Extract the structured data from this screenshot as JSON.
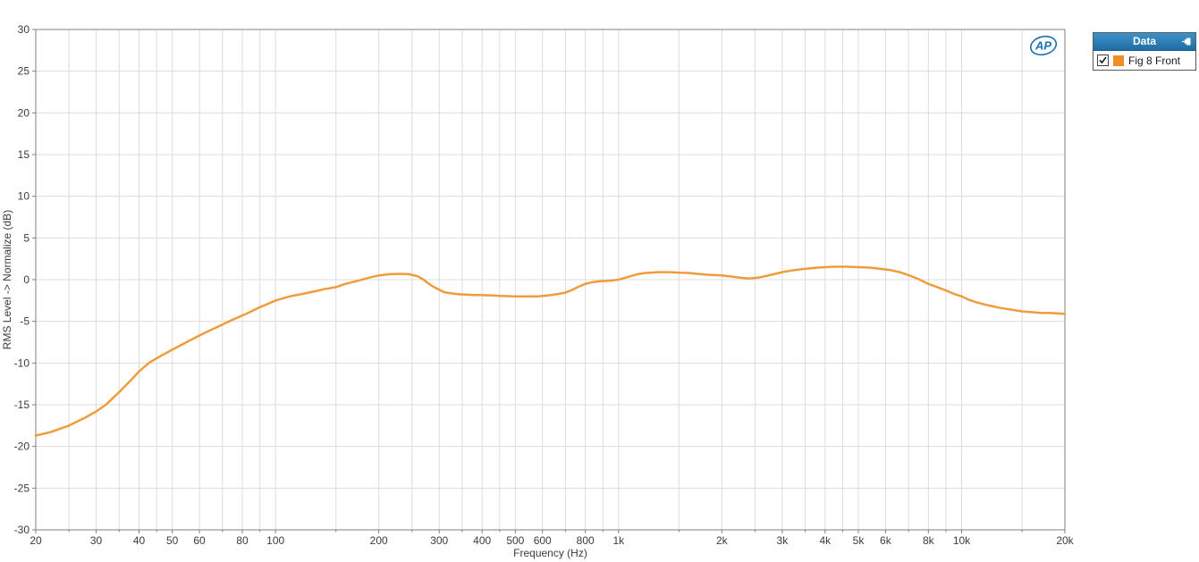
{
  "chart_data": {
    "type": "line",
    "title": "",
    "xlabel": "Frequency (Hz)",
    "ylabel": "RMS Level -> Normalize (dB)",
    "x_scale": "log",
    "xlim": [
      20,
      20000
    ],
    "ylim": [
      -30,
      30
    ],
    "y_tick_step": 5,
    "grid": true,
    "legend_position": "external-right",
    "x_major_ticks": [
      20,
      30,
      40,
      50,
      60,
      80,
      100,
      200,
      300,
      400,
      500,
      600,
      800,
      1000,
      2000,
      3000,
      4000,
      5000,
      6000,
      8000,
      10000,
      20000
    ],
    "x_major_labels": [
      "20",
      "30",
      "40",
      "50",
      "60",
      "80",
      "100",
      "200",
      "300",
      "400",
      "500",
      "600",
      "800",
      "1k",
      "2k",
      "3k",
      "4k",
      "5k",
      "6k",
      "8k",
      "10k",
      "20k"
    ],
    "x_minor_ticks": [
      25,
      35,
      45,
      70,
      90,
      150,
      250,
      350,
      450,
      700,
      900,
      1500,
      2500,
      3500,
      4500,
      7000,
      9000,
      15000
    ],
    "y_ticks": [
      30,
      25,
      20,
      15,
      10,
      5,
      0,
      -5,
      -10,
      -15,
      -20,
      -25,
      -30
    ],
    "series": [
      {
        "name": "Fig 8 Front",
        "color": "#F09C3C",
        "points": [
          [
            20,
            -18.7
          ],
          [
            22,
            -18.3
          ],
          [
            25,
            -17.5
          ],
          [
            28,
            -16.5
          ],
          [
            30,
            -15.8
          ],
          [
            32,
            -15.0
          ],
          [
            35,
            -13.5
          ],
          [
            38,
            -12.0
          ],
          [
            40,
            -11.0
          ],
          [
            43,
            -9.9
          ],
          [
            46,
            -9.2
          ],
          [
            50,
            -8.4
          ],
          [
            55,
            -7.5
          ],
          [
            60,
            -6.7
          ],
          [
            65,
            -6.0
          ],
          [
            70,
            -5.4
          ],
          [
            75,
            -4.8
          ],
          [
            80,
            -4.3
          ],
          [
            85,
            -3.8
          ],
          [
            90,
            -3.3
          ],
          [
            95,
            -2.9
          ],
          [
            100,
            -2.5
          ],
          [
            110,
            -2.0
          ],
          [
            120,
            -1.7
          ],
          [
            130,
            -1.4
          ],
          [
            140,
            -1.1
          ],
          [
            150,
            -0.9
          ],
          [
            160,
            -0.5
          ],
          [
            175,
            -0.1
          ],
          [
            190,
            0.3
          ],
          [
            200,
            0.5
          ],
          [
            215,
            0.65
          ],
          [
            230,
            0.7
          ],
          [
            245,
            0.65
          ],
          [
            260,
            0.4
          ],
          [
            270,
            0.0
          ],
          [
            280,
            -0.5
          ],
          [
            290,
            -0.9
          ],
          [
            300,
            -1.2
          ],
          [
            310,
            -1.5
          ],
          [
            320,
            -1.6
          ],
          [
            340,
            -1.75
          ],
          [
            360,
            -1.8
          ],
          [
            380,
            -1.85
          ],
          [
            400,
            -1.85
          ],
          [
            430,
            -1.9
          ],
          [
            460,
            -1.95
          ],
          [
            500,
            -2.0
          ],
          [
            540,
            -2.0
          ],
          [
            580,
            -2.0
          ],
          [
            620,
            -1.9
          ],
          [
            660,
            -1.75
          ],
          [
            700,
            -1.55
          ],
          [
            730,
            -1.25
          ],
          [
            760,
            -0.9
          ],
          [
            800,
            -0.5
          ],
          [
            840,
            -0.3
          ],
          [
            880,
            -0.2
          ],
          [
            920,
            -0.15
          ],
          [
            960,
            -0.1
          ],
          [
            1000,
            0.0
          ],
          [
            1050,
            0.25
          ],
          [
            1100,
            0.5
          ],
          [
            1150,
            0.7
          ],
          [
            1200,
            0.8
          ],
          [
            1300,
            0.9
          ],
          [
            1400,
            0.9
          ],
          [
            1500,
            0.85
          ],
          [
            1600,
            0.8
          ],
          [
            1700,
            0.7
          ],
          [
            1800,
            0.6
          ],
          [
            1900,
            0.55
          ],
          [
            2000,
            0.5
          ],
          [
            2100,
            0.4
          ],
          [
            2200,
            0.3
          ],
          [
            2300,
            0.2
          ],
          [
            2400,
            0.15
          ],
          [
            2500,
            0.2
          ],
          [
            2600,
            0.3
          ],
          [
            2800,
            0.6
          ],
          [
            3000,
            0.9
          ],
          [
            3200,
            1.1
          ],
          [
            3500,
            1.3
          ],
          [
            3800,
            1.45
          ],
          [
            4000,
            1.5
          ],
          [
            4300,
            1.55
          ],
          [
            4600,
            1.55
          ],
          [
            5000,
            1.5
          ],
          [
            5400,
            1.45
          ],
          [
            5800,
            1.3
          ],
          [
            6200,
            1.15
          ],
          [
            6600,
            0.9
          ],
          [
            7000,
            0.55
          ],
          [
            7500,
            0.05
          ],
          [
            8000,
            -0.5
          ],
          [
            8500,
            -0.9
          ],
          [
            9000,
            -1.3
          ],
          [
            9500,
            -1.7
          ],
          [
            10000,
            -2.0
          ],
          [
            10500,
            -2.4
          ],
          [
            11000,
            -2.7
          ],
          [
            12000,
            -3.1
          ],
          [
            13000,
            -3.4
          ],
          [
            14000,
            -3.6
          ],
          [
            15000,
            -3.8
          ],
          [
            16000,
            -3.9
          ],
          [
            17000,
            -4.0
          ],
          [
            18000,
            -4.0
          ],
          [
            19000,
            -4.05
          ],
          [
            20000,
            -4.1
          ]
        ]
      }
    ]
  },
  "legend_panel": {
    "title": "Data",
    "items": [
      {
        "label": "Fig 8 Front",
        "checked": true,
        "color": "#F28C28"
      }
    ]
  },
  "logo": {
    "text": "AP"
  },
  "colors": {
    "grid": "#DCDCDC",
    "plot_border": "#7F7F7F",
    "tick_text": "#3C3C3C",
    "curve": "#F09C3C",
    "legend_header_top": "#3D92C8",
    "legend_header_bottom": "#1F6DA4",
    "logo_blue": "#1C6FB5"
  }
}
